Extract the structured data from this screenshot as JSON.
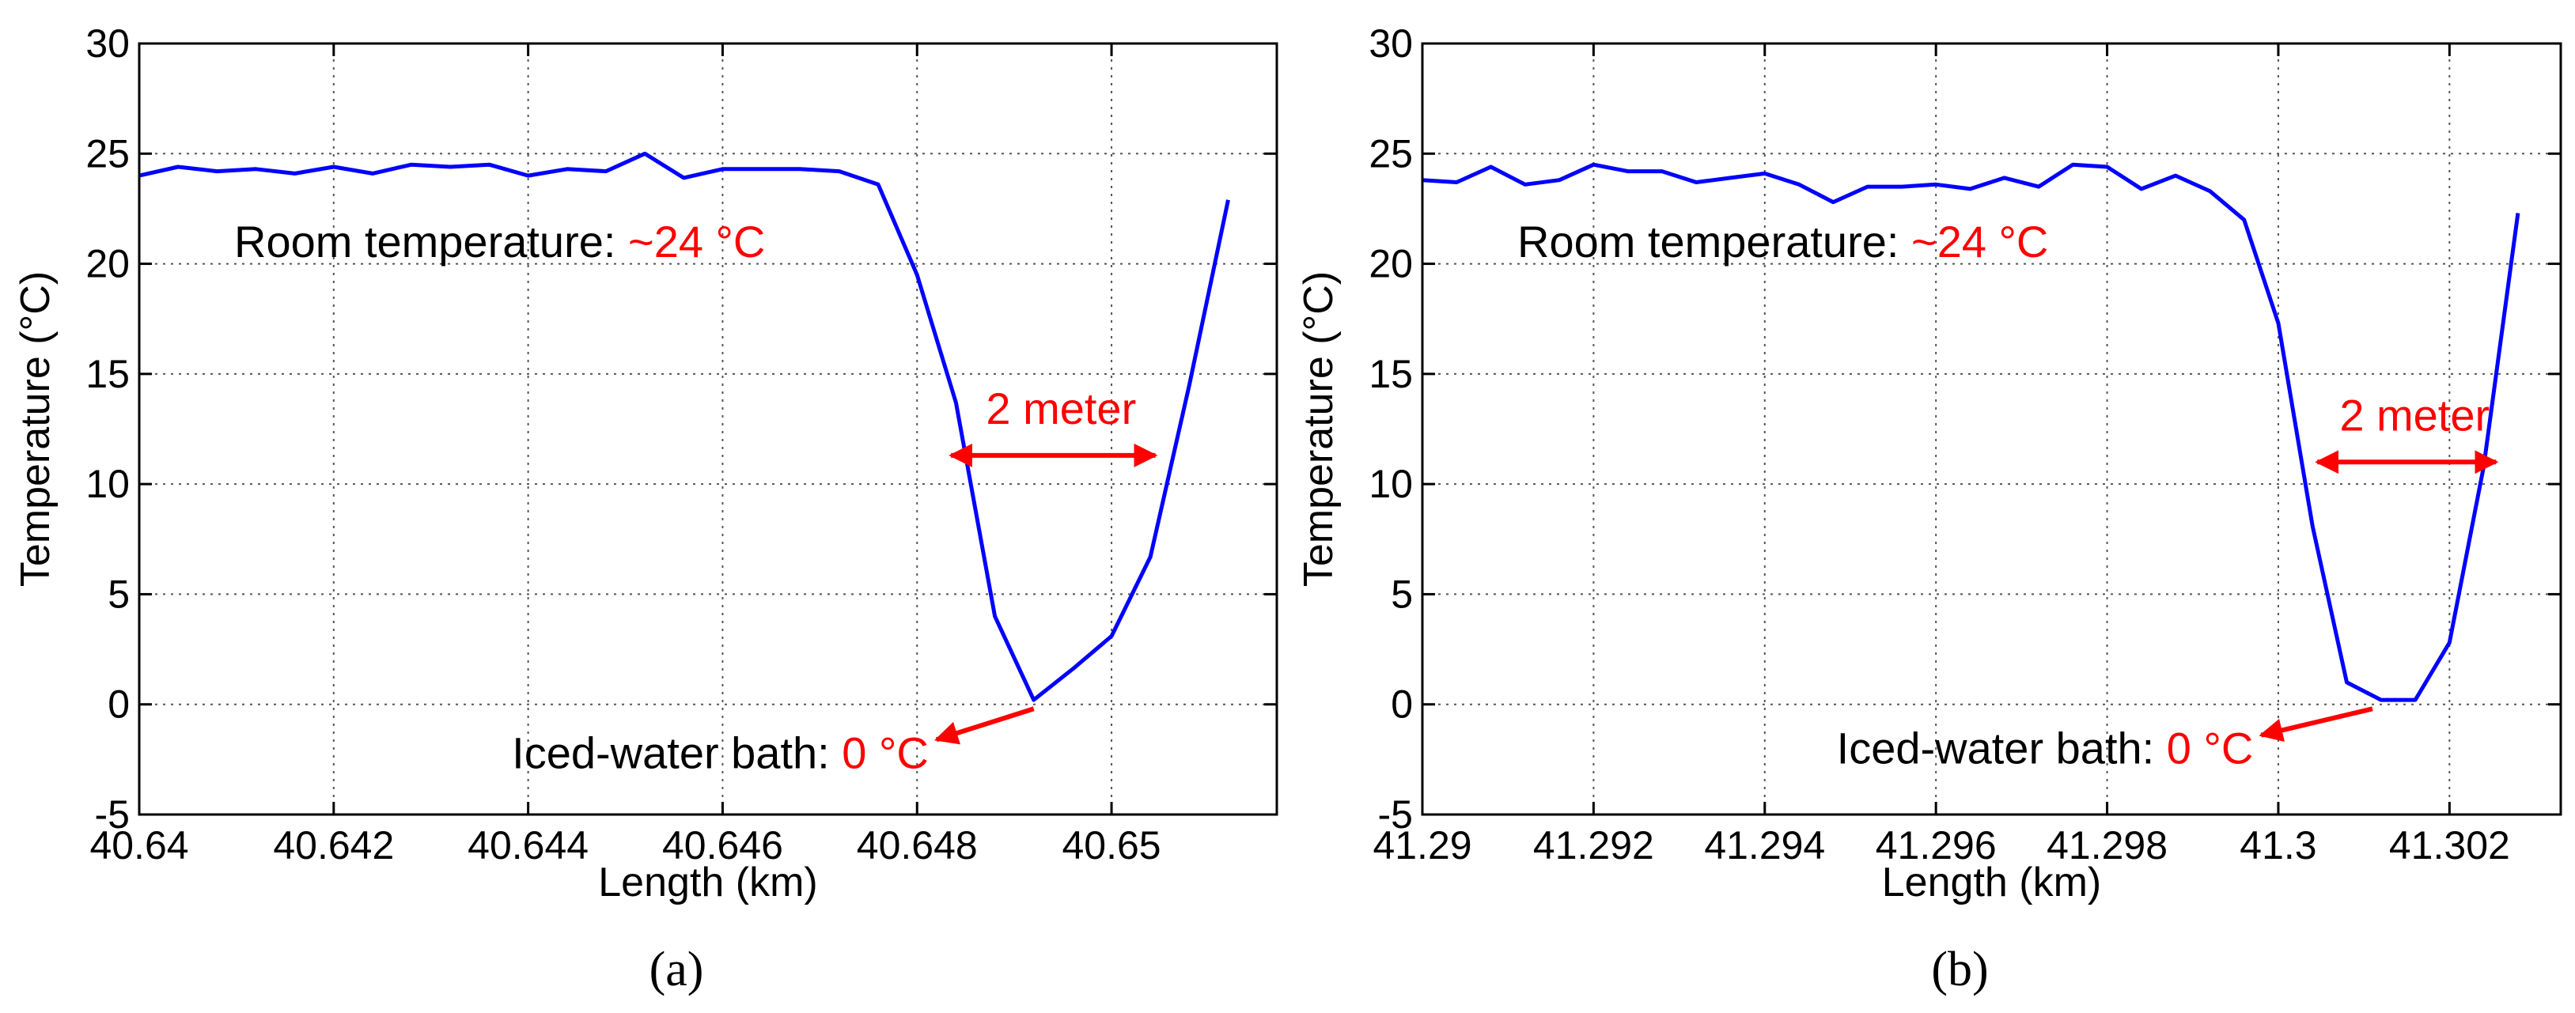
{
  "chart_data": [
    {
      "type": "line",
      "panel_label": "(a)",
      "xlabel": "Length (km)",
      "ylabel": "Temperature (°C)",
      "xlim": [
        40.64,
        40.6517
      ],
      "ylim": [
        -5,
        30
      ],
      "xticks": [
        40.64,
        40.642,
        40.644,
        40.646,
        40.648,
        40.65
      ],
      "xtick_labels": [
        "40.64",
        "40.642",
        "40.644",
        "40.646",
        "40.648",
        "40.65"
      ],
      "yticks": [
        -5,
        0,
        5,
        10,
        15,
        20,
        25,
        30
      ],
      "ytick_labels": [
        "-5",
        "0",
        "5",
        "10",
        "15",
        "20",
        "25",
        "30"
      ],
      "grid": true,
      "series": [
        {
          "color": "#0000ff",
          "x": [
            40.64,
            40.6404,
            40.6408,
            40.6412,
            40.6416,
            40.642,
            40.6424,
            40.6428,
            40.6432,
            40.6436,
            40.644,
            40.6444,
            40.6448,
            40.6452,
            40.6456,
            40.646,
            40.6464,
            40.6468,
            40.6472,
            40.6476,
            40.648,
            40.6484,
            40.6488,
            40.6492,
            40.6496,
            40.65,
            40.6504,
            40.6508,
            40.6512
          ],
          "y": [
            24.0,
            24.4,
            24.2,
            24.3,
            24.1,
            24.4,
            24.1,
            24.5,
            24.4,
            24.5,
            24.0,
            24.3,
            24.2,
            25.0,
            23.9,
            24.3,
            24.3,
            24.3,
            24.2,
            23.6,
            19.5,
            13.7,
            4.0,
            0.2,
            1.6,
            3.1,
            6.7,
            14.5,
            22.9
          ]
        }
      ],
      "annotations": {
        "room_label": "Room temperature:",
        "room_value": "~24 °C",
        "width_label": "2 meter",
        "bath_label": "Iced-water bath:",
        "bath_value": "0 °C",
        "width_arrow": {
          "x_from": 40.6483,
          "x_to": 40.6505,
          "y": 11.3
        },
        "bath_arrow": {
          "x_from": 40.6492,
          "y_from": -0.2,
          "x_to": 40.6482,
          "y_to": -1.6
        }
      }
    },
    {
      "type": "line",
      "panel_label": "(b)",
      "xlabel": "Length (km)",
      "ylabel": "Temperature (°C)",
      "xlim": [
        41.29,
        41.3033
      ],
      "ylim": [
        -5,
        30
      ],
      "xticks": [
        41.29,
        41.292,
        41.294,
        41.296,
        41.298,
        41.3,
        41.302
      ],
      "xtick_labels": [
        "41.29",
        "41.292",
        "41.294",
        "41.296",
        "41.298",
        "41.3",
        "41.302"
      ],
      "yticks": [
        -5,
        0,
        5,
        10,
        15,
        20,
        25,
        30
      ],
      "ytick_labels": [
        "-5",
        "0",
        "5",
        "10",
        "15",
        "20",
        "25",
        "30"
      ],
      "grid": true,
      "series": [
        {
          "color": "#0000ff",
          "x": [
            41.29,
            41.2904,
            41.2908,
            41.2912,
            41.2916,
            41.292,
            41.2924,
            41.2928,
            41.2932,
            41.2936,
            41.294,
            41.2944,
            41.2948,
            41.2952,
            41.2956,
            41.296,
            41.2964,
            41.2968,
            41.2972,
            41.2976,
            41.298,
            41.2984,
            41.2988,
            41.2992,
            41.2996,
            41.3,
            41.3004,
            41.3008,
            41.3012,
            41.3016,
            41.302,
            41.3024,
            41.3028
          ],
          "y": [
            23.8,
            23.7,
            24.4,
            23.6,
            23.8,
            24.5,
            24.2,
            24.2,
            23.7,
            23.9,
            24.1,
            23.6,
            22.8,
            23.5,
            23.5,
            23.6,
            23.4,
            23.9,
            23.5,
            24.5,
            24.4,
            23.4,
            24.0,
            23.3,
            22.0,
            17.3,
            8.1,
            1.0,
            0.2,
            0.2,
            2.8,
            10.8,
            22.3
          ]
        }
      ],
      "annotations": {
        "room_label": "Room temperature:",
        "room_value": "~24 °C",
        "width_label": "2 meter",
        "bath_label": "Iced-water bath:",
        "bath_value": "0 °C",
        "width_arrow": {
          "x_from": 41.3004,
          "x_to": 41.3026,
          "y": 11.0
        },
        "bath_arrow": {
          "x_from": 41.3011,
          "y_from": -0.2,
          "x_to": 41.2998,
          "y_to": -1.4
        }
      }
    }
  ]
}
